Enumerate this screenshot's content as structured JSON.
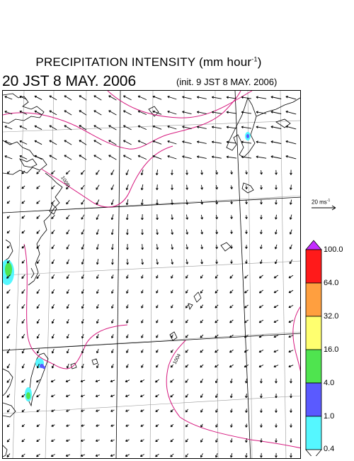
{
  "title": {
    "prefix": "PRECIPITATION INTENSITY (mm hour",
    "exponent": "-1",
    "suffix": ")"
  },
  "valid_time": "20 JST 8 MAY. 2006",
  "init_time": "(init. 9 JST 8 MAY. 2006)",
  "wind_reference": {
    "label": "20 ms",
    "exponent": "-1"
  },
  "contour_labels": [
    "1008",
    "1004"
  ],
  "colorbar": {
    "levels": [
      "0.4",
      "1.0",
      "4.0",
      "16.0",
      "32.0",
      "64.0",
      "100.0"
    ],
    "colors": [
      "#ffffff",
      "#55f7ff",
      "#5a5aff",
      "#4fe44f",
      "#ffff6f",
      "#ff9f3f",
      "#ff1a1a",
      "#c42bff"
    ]
  },
  "map_colors": {
    "isobar": "#d6197e",
    "coast": "#000000",
    "grid": "#9a9a9a"
  }
}
